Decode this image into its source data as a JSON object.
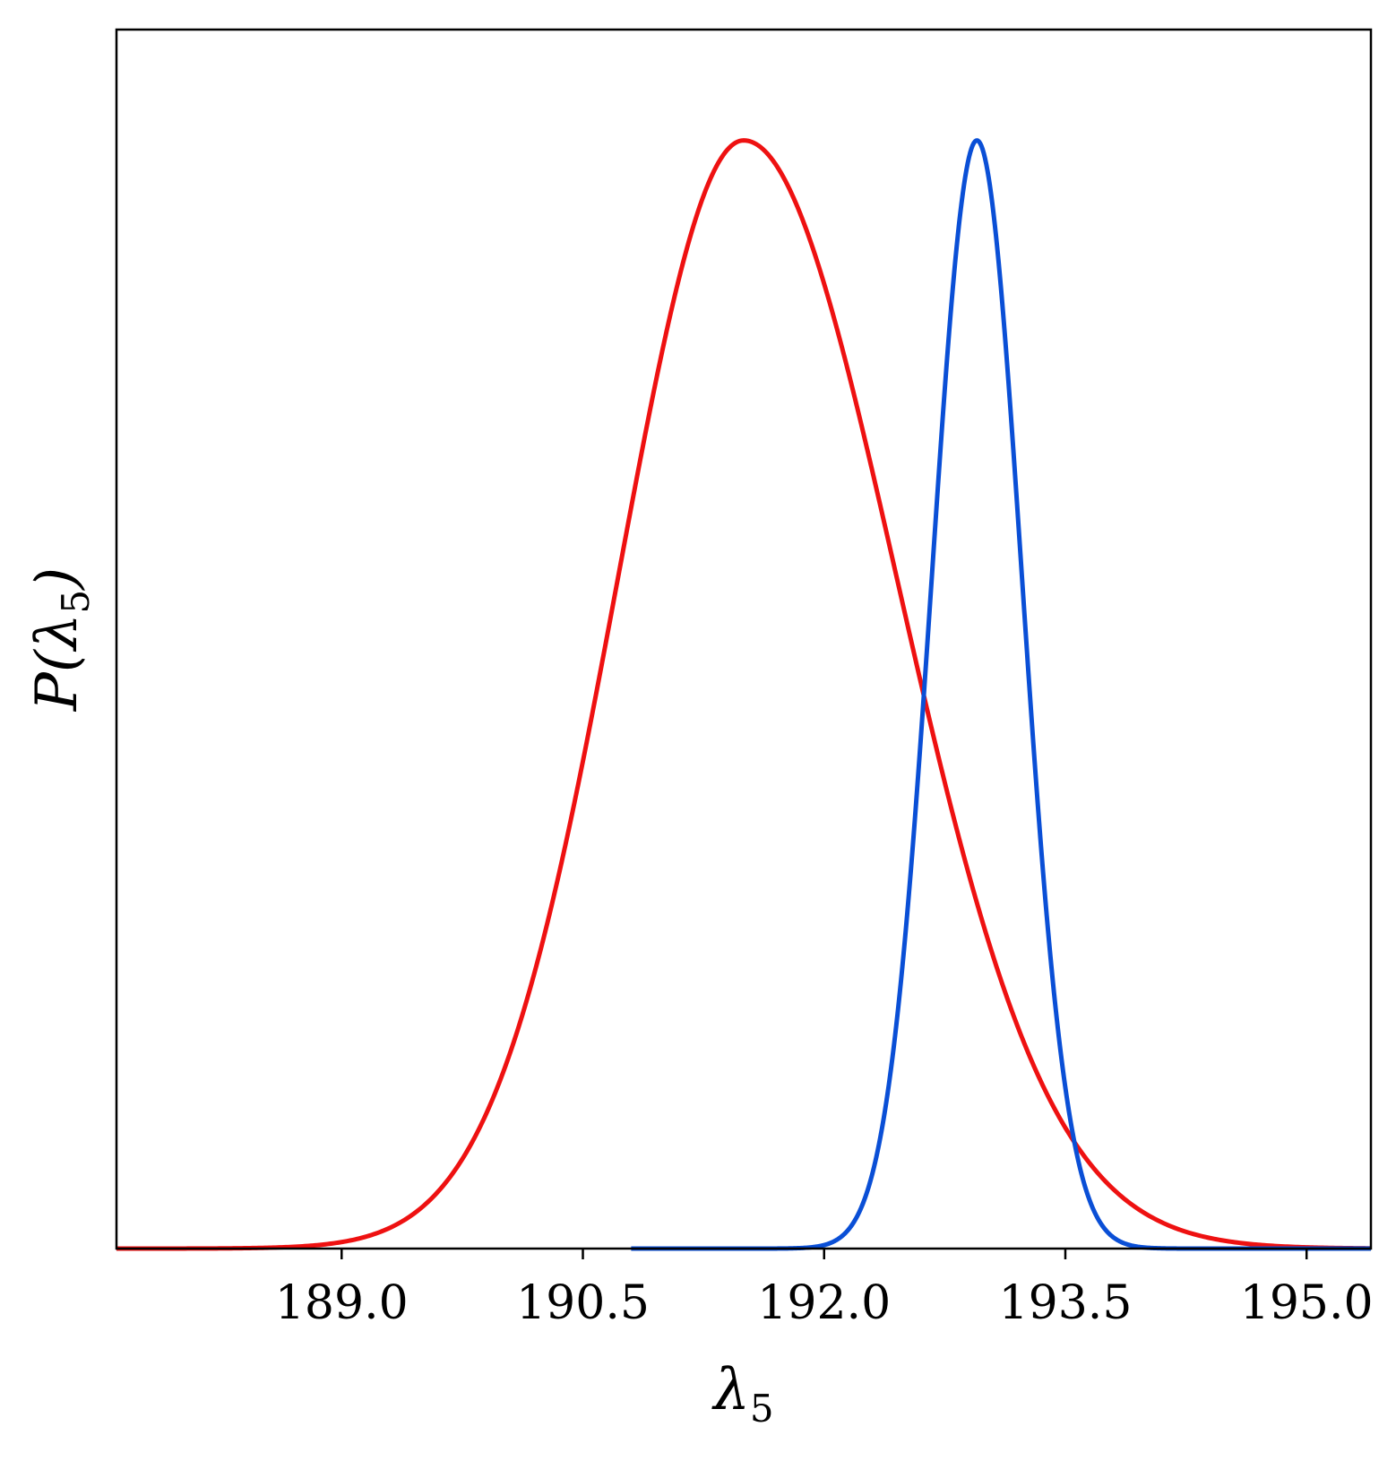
{
  "chart_data": {
    "type": "line",
    "title": "",
    "xlabel": "λ",
    "xlabel_subscript": "5",
    "ylabel_prefix": "P(",
    "ylabel_symbol": "λ",
    "ylabel_subscript": "5",
    "ylabel_suffix": ")",
    "xlim": [
      187.6,
      195.4
    ],
    "ylim": [
      0,
      1.1
    ],
    "x_ticks": [
      189.0,
      190.5,
      192.0,
      193.5,
      195.0
    ],
    "x_tick_labels": [
      "189.0",
      "190.5",
      "192.0",
      "193.5",
      "195.0"
    ],
    "y_ticks_shown": false,
    "grid": false,
    "legend": "none",
    "series": [
      {
        "color": "#ee1111",
        "distribution": "skewed-gaussian",
        "peak_x": 191.5,
        "peak_y": 1.0,
        "sigma_left": 0.78,
        "sigma_right": 0.95,
        "x_range": [
          187.6,
          195.4
        ]
      },
      {
        "color": "#0a4fd6",
        "distribution": "gaussian",
        "peak_x": 192.95,
        "peak_y": 1.0,
        "sigma": 0.28,
        "x_range": [
          190.8,
          195.4
        ]
      }
    ]
  }
}
